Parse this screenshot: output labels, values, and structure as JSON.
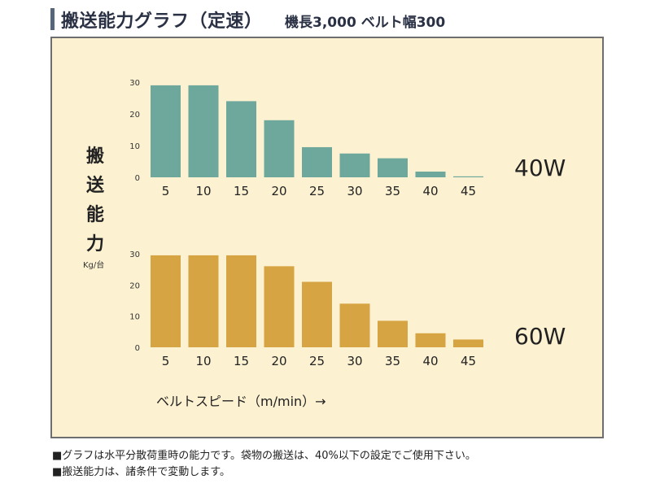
{
  "header": {
    "title": "搬送能力グラフ（定速）",
    "subtitle": "機長3,000 ベルト幅300"
  },
  "axis": {
    "ylabel_chars": [
      "搬",
      "送",
      "能",
      "力"
    ],
    "yunit": "Kg/台",
    "xtitle": "ベルトスピード（m/min）→"
  },
  "chart_data": [
    {
      "type": "bar",
      "series_name": "40W",
      "categories": [
        "5",
        "10",
        "15",
        "20",
        "25",
        "30",
        "35",
        "40",
        "45"
      ],
      "values": [
        29,
        29,
        24,
        18,
        9.5,
        7.5,
        6,
        1.8,
        0.3
      ],
      "yticks": [
        "0",
        "10",
        "20",
        "30"
      ],
      "ylim": [
        0,
        30
      ],
      "color": "#6ea79c"
    },
    {
      "type": "bar",
      "series_name": "60W",
      "categories": [
        "5",
        "10",
        "15",
        "20",
        "25",
        "30",
        "35",
        "40",
        "45"
      ],
      "values": [
        29.5,
        29.5,
        29.5,
        26,
        21,
        14,
        8.5,
        4.5,
        2.5
      ],
      "yticks": [
        "0",
        "10",
        "20",
        "30"
      ],
      "ylim": [
        0,
        30
      ],
      "color": "#d7a444"
    }
  ],
  "notes": [
    "■グラフは水平分散荷重時の能力です。袋物の搬送は、40%以下の設定でご使用下さい。",
    "■搬送能力は、諸条件で変動します。"
  ],
  "colors": {
    "panel_bg": "#fcf1d1",
    "accent": "#55657a"
  }
}
